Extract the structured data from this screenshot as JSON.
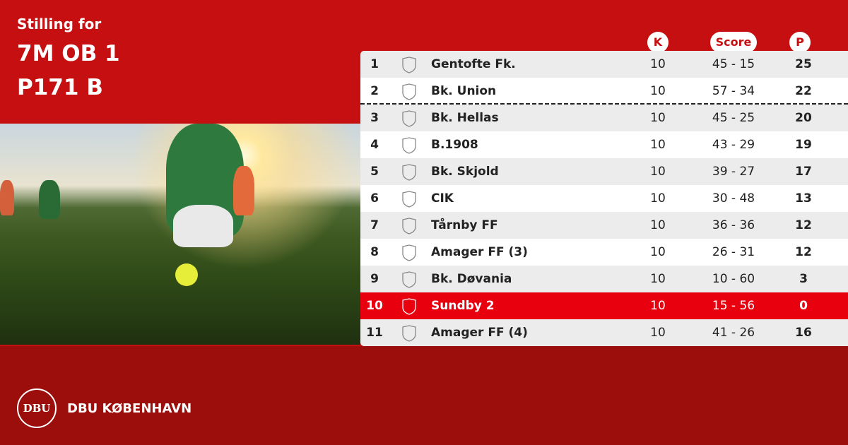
{
  "header": {
    "subtitle": "Stilling for",
    "title_line1": "7M OB 1",
    "title_line2": "P171 B"
  },
  "table": {
    "columns": {
      "k": "K",
      "score": "Score",
      "p": "P"
    },
    "rows": [
      {
        "rank": 1,
        "team": "Gentofte Fk.",
        "k": 10,
        "score": "45 - 15",
        "p": 25
      },
      {
        "rank": 2,
        "team": "Bk. Union",
        "k": 10,
        "score": "57 - 34",
        "p": 22,
        "divider": true
      },
      {
        "rank": 3,
        "team": "Bk. Hellas",
        "k": 10,
        "score": "45 - 25",
        "p": 20
      },
      {
        "rank": 4,
        "team": "B.1908",
        "k": 10,
        "score": "43 - 29",
        "p": 19
      },
      {
        "rank": 5,
        "team": "Bk. Skjold",
        "k": 10,
        "score": "39 - 27",
        "p": 17
      },
      {
        "rank": 6,
        "team": "CIK",
        "k": 10,
        "score": "30 - 48",
        "p": 13
      },
      {
        "rank": 7,
        "team": "Tårnby FF",
        "k": 10,
        "score": "36 - 36",
        "p": 12
      },
      {
        "rank": 8,
        "team": "Amager FF (3)",
        "k": 10,
        "score": "26 - 31",
        "p": 12
      },
      {
        "rank": 9,
        "team": "Bk. Døvania",
        "k": 10,
        "score": "10 - 60",
        "p": 3
      },
      {
        "rank": 10,
        "team": "Sundby 2",
        "k": 10,
        "score": "15 - 56",
        "p": 0,
        "highlight": true
      },
      {
        "rank": 11,
        "team": "Amager FF (4)",
        "k": 10,
        "score": "41 - 26",
        "p": 16
      }
    ]
  },
  "footer": {
    "logo_text": "DBU",
    "brand": "DBU KØBENHAVN"
  }
}
